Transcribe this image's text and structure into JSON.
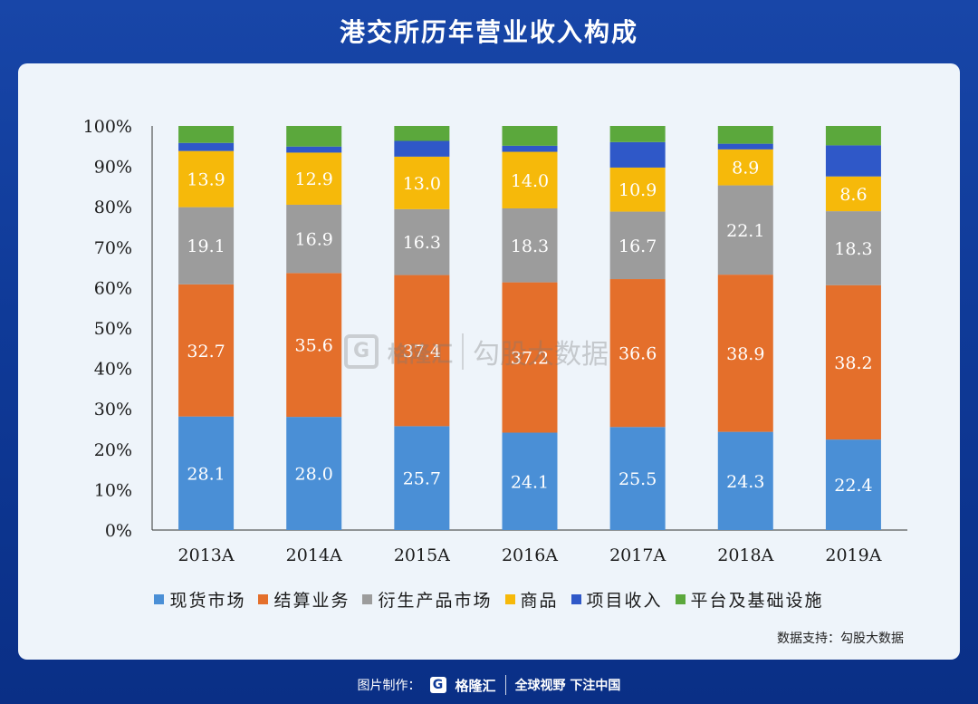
{
  "title": "港交所历年营业收入构成",
  "source": "数据支持：勾股大数据",
  "watermark": {
    "logo_letter": "G",
    "brand": "格隆汇",
    "text": "勾股大数据"
  },
  "footer": {
    "made_by": "图片制作：",
    "logo_letter": "G",
    "brand": "格隆汇",
    "slogan": "全球视野 下注中国"
  },
  "chart_data": {
    "type": "bar",
    "stacked": true,
    "title": "港交所历年营业收入构成",
    "categories": [
      "2013A",
      "2014A",
      "2015A",
      "2016A",
      "2017A",
      "2018A",
      "2019A"
    ],
    "y_ticks": [
      "0%",
      "10%",
      "20%",
      "30%",
      "40%",
      "50%",
      "60%",
      "70%",
      "80%",
      "90%",
      "100%"
    ],
    "ylim": [
      0,
      100
    ],
    "legend_position": "bottom",
    "series": [
      {
        "name": "现货市场",
        "color": "#4a8fd6",
        "values": [
          28.1,
          28.0,
          25.7,
          24.1,
          25.5,
          24.3,
          22.4
        ],
        "labels": [
          "28.1",
          "28.0",
          "25.7",
          "24.1",
          "25.5",
          "24.3",
          "22.4"
        ]
      },
      {
        "name": "结算业务",
        "color": "#e46f2b",
        "values": [
          32.7,
          35.6,
          37.4,
          37.2,
          36.6,
          38.9,
          38.2
        ],
        "labels": [
          "32.7",
          "35.6",
          "37.4",
          "37.2",
          "36.6",
          "38.9",
          "38.2"
        ]
      },
      {
        "name": "衍生产品市场",
        "color": "#9c9c9c",
        "values": [
          19.1,
          16.9,
          16.3,
          18.3,
          16.7,
          22.1,
          18.3
        ],
        "labels": [
          "19.1",
          "16.9",
          "16.3",
          "18.3",
          "16.7",
          "22.1",
          "18.3"
        ]
      },
      {
        "name": "商品",
        "color": "#f6b90a",
        "values": [
          13.9,
          12.9,
          13.0,
          14.0,
          10.9,
          8.9,
          8.6
        ],
        "labels": [
          "13.9",
          "12.9",
          "13.0",
          "14.0",
          "10.9",
          "8.9",
          "8.6"
        ]
      },
      {
        "name": "项目收入",
        "color": "#2f58c8",
        "values": [
          2.0,
          1.5,
          3.9,
          1.5,
          6.3,
          1.4,
          7.7
        ],
        "labels": []
      },
      {
        "name": "平台及基础设施",
        "color": "#5ba83c",
        "values": [
          4.2,
          5.1,
          3.7,
          4.9,
          4.0,
          4.4,
          4.8
        ],
        "labels": []
      }
    ]
  }
}
